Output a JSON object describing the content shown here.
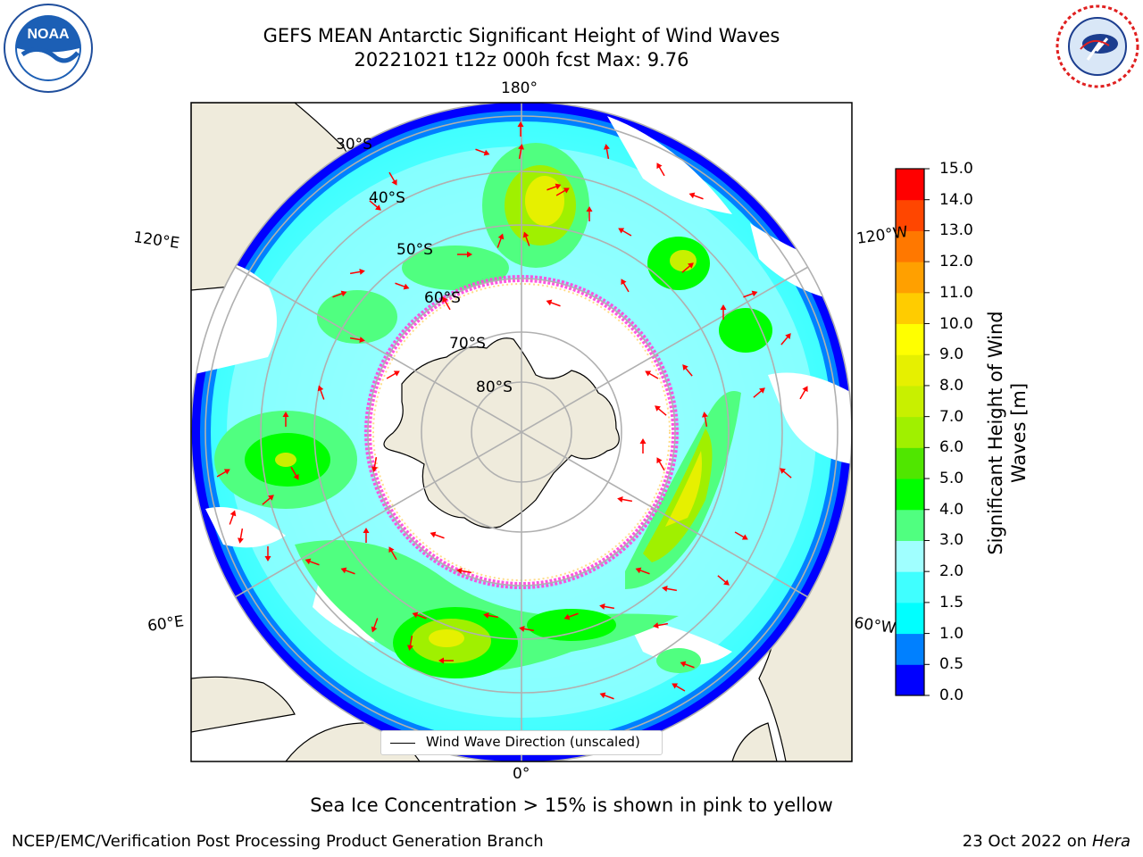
{
  "title": {
    "line1": "GEFS MEAN Antarctic Significant Height of Wind Waves",
    "line2": "20221021 t12z 000h fcst   Max: 9.76"
  },
  "logos": {
    "left": {
      "text": "NOAA",
      "ring_text": "NATIONAL OCEANIC AND ATMOSPHERIC ADMINISTRATION · U.S. DEPARTMENT OF COMMERCE",
      "icon": "noaa-logo"
    },
    "right": {
      "ring_text": "NATIONAL WEATHER SERVICE",
      "icon": "nws-logo"
    }
  },
  "map": {
    "projection": "south-polar-stereographic",
    "longitude_labels": {
      "top": "180°",
      "bottom": "0°",
      "upper_left": "120°E",
      "upper_right": "120°W",
      "lower_left": "60°E",
      "lower_right": "60°W"
    },
    "latitude_labels": [
      "30°S",
      "40°S",
      "50°S",
      "60°S",
      "70°S",
      "80°S"
    ],
    "legend_label": "Wind Wave Direction (unscaled)",
    "colors": {
      "land": "#efebdc",
      "grid": "#b0b0b0",
      "arrows": "#ff0000",
      "sea_ice_edge": "#ff44dd",
      "sea_ice_inner": "#ffd36b"
    }
  },
  "colorbar": {
    "label": "Significant Height of Wind Waves [m]",
    "label_lines": [
      "Significant Height of Wind",
      "Waves [m]"
    ],
    "levels": [
      0.0,
      0.5,
      1.0,
      1.5,
      2.0,
      3.0,
      4.0,
      5.0,
      6.0,
      7.0,
      8.0,
      9.0,
      10.0,
      11.0,
      12.0,
      13.0,
      14.0,
      15.0
    ],
    "tick_labels": [
      "0.0",
      "0.5",
      "1.0",
      "1.5",
      "2.0",
      "3.0",
      "4.0",
      "5.0",
      "6.0",
      "7.0",
      "8.0",
      "9.0",
      "10.0",
      "11.0",
      "12.0",
      "13.0",
      "14.0",
      "15.0"
    ],
    "colors": [
      "#0000ff",
      "#0080ff",
      "#00ffff",
      "#40ffff",
      "#a0ffff",
      "#50ff80",
      "#00ff00",
      "#50e600",
      "#a0f000",
      "#c8f000",
      "#e6f000",
      "#ffff00",
      "#ffcc00",
      "#ffa000",
      "#ff7800",
      "#ff4600",
      "#ff0000"
    ]
  },
  "caption": "Sea Ice Concentration > 15% is shown in pink to yellow",
  "footer": {
    "left": "NCEP/EMC/Verification Post Processing Product Generation Branch",
    "right_prefix": "23 Oct 2022 on ",
    "right_machine": "Hera"
  }
}
